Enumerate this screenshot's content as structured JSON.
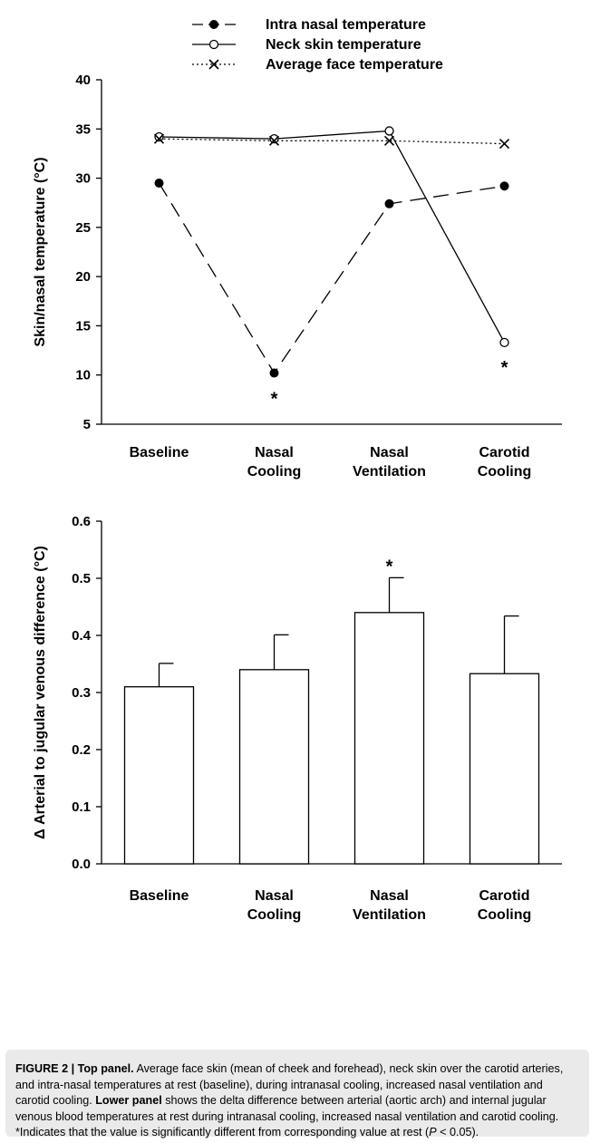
{
  "chart_data": [
    {
      "type": "line",
      "categories": [
        [
          "Baseline"
        ],
        [
          "Nasal",
          "Cooling"
        ],
        [
          "Nasal",
          "Ventilation"
        ],
        [
          "Carotid",
          "Cooling"
        ]
      ],
      "ylabel": "Skin/nasal temperature (°C)",
      "ylim": [
        5,
        40
      ],
      "yticks": [
        5,
        10,
        15,
        20,
        25,
        30,
        35,
        40
      ],
      "grid": false,
      "legend_position": "top-center",
      "series": [
        {
          "name": "Intra nasal temperature",
          "line": "dashed",
          "marker": "filled-circle",
          "values": [
            29.5,
            10.2,
            27.4,
            29.2
          ]
        },
        {
          "name": "Neck skin temperature",
          "line": "solid",
          "marker": "open-circle",
          "values": [
            34.2,
            34.0,
            34.8,
            13.3
          ]
        },
        {
          "name": "Average face temperature",
          "line": "dotted",
          "marker": "x",
          "values": [
            34.0,
            33.8,
            33.8,
            33.5
          ]
        }
      ],
      "annotations": [
        {
          "text": "*",
          "category_index": 1,
          "y": 7.8
        },
        {
          "text": "*",
          "category_index": 3,
          "y": 11.0
        }
      ]
    },
    {
      "type": "bar",
      "categories": [
        [
          "Baseline"
        ],
        [
          "Nasal",
          "Cooling"
        ],
        [
          "Nasal",
          "Ventilation"
        ],
        [
          "Carotid",
          "Cooling"
        ]
      ],
      "ylabel": "Δ Arterial to jugular venous difference (°C)",
      "ylim": [
        0,
        0.6
      ],
      "yticks": [
        0.0,
        0.1,
        0.2,
        0.3,
        0.4,
        0.5,
        0.6
      ],
      "tick_format": 1,
      "grid": false,
      "values": [
        0.31,
        0.34,
        0.44,
        0.333
      ],
      "error_upper": [
        0.351,
        0.401,
        0.501,
        0.434
      ],
      "annotations": [
        {
          "text": "*",
          "category_index": 2,
          "y": 0.525
        }
      ]
    }
  ],
  "caption": {
    "label": "FIGURE 2 | Top panel.",
    "text1": " Average face skin (mean of cheek and forehead), neck skin over the carotid arteries, and intra-nasal temperatures at rest (baseline), during intranasal cooling, increased nasal ventilation and carotid cooling. ",
    "label2": "Lower panel",
    "text2": " shows the delta difference between arterial (aortic arch) and internal jugular venous blood temperatures at rest during intranasal cooling, increased nasal ventilation and carotid cooling. *Indicates that the value is significantly different from corresponding value at rest (",
    "p_symbol": "P",
    "text3": " < 0.05)."
  },
  "colors": {
    "ink": "#000000",
    "caption_background": "#eaeaea",
    "bar_fill": "#ffffff"
  }
}
